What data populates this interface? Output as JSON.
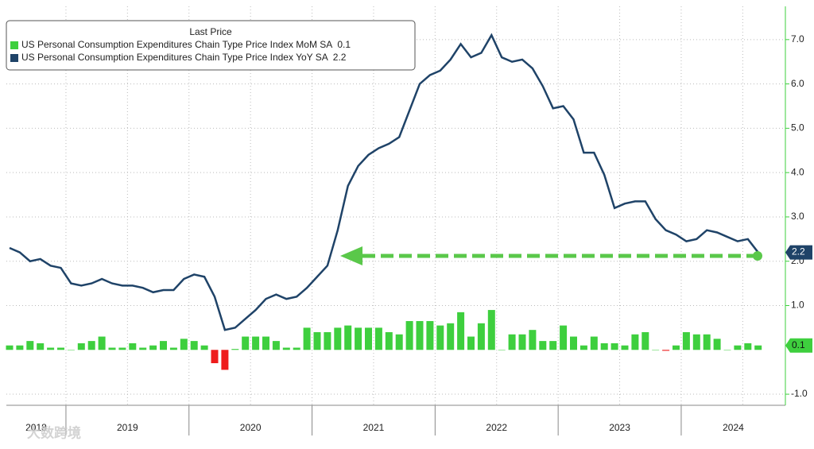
{
  "chart_data": {
    "type": "bar_line",
    "legend_title": "Last Price",
    "series": [
      {
        "name": "US Personal Consumption Expenditures Chain Type Price Index MoM SA",
        "type": "bar",
        "color": "#3ecf3e",
        "negative_color": "#ee1c1c",
        "values": [
          0.1,
          0.1,
          0.2,
          0.15,
          0.05,
          0.05,
          0.0,
          0.15,
          0.2,
          0.3,
          0.05,
          0.05,
          0.15,
          0.05,
          0.1,
          0.2,
          0.05,
          0.25,
          0.2,
          0.1,
          -0.3,
          -0.45,
          0.02,
          0.3,
          0.3,
          0.3,
          0.2,
          0.05,
          0.05,
          0.5,
          0.4,
          0.4,
          0.5,
          0.55,
          0.5,
          0.5,
          0.5,
          0.4,
          0.35,
          0.65,
          0.65,
          0.65,
          0.55,
          0.6,
          0.85,
          0.3,
          0.6,
          0.9,
          0.0,
          0.35,
          0.35,
          0.45,
          0.2,
          0.2,
          0.55,
          0.3,
          0.1,
          0.3,
          0.15,
          0.15,
          0.1,
          0.35,
          0.4,
          0.0,
          -0.02,
          0.1,
          0.4,
          0.35,
          0.35,
          0.25,
          0.0,
          0.1,
          0.15,
          0.1
        ]
      },
      {
        "name": "US Personal Consumption Expenditures Chain Type Price Index YoY SA",
        "type": "line",
        "color": "#1f4368",
        "values": [
          2.3,
          2.2,
          2.0,
          2.05,
          1.9,
          1.85,
          1.5,
          1.45,
          1.5,
          1.6,
          1.5,
          1.45,
          1.45,
          1.4,
          1.3,
          1.35,
          1.35,
          1.6,
          1.7,
          1.65,
          1.2,
          0.45,
          0.5,
          0.7,
          0.9,
          1.15,
          1.25,
          1.15,
          1.2,
          1.4,
          1.65,
          1.9,
          2.7,
          3.7,
          4.15,
          4.4,
          4.55,
          4.65,
          4.8,
          5.4,
          6.0,
          6.2,
          6.3,
          6.55,
          6.9,
          6.6,
          6.7,
          7.1,
          6.6,
          6.5,
          6.55,
          6.35,
          5.95,
          5.45,
          5.5,
          5.2,
          4.45,
          4.45,
          3.95,
          3.2,
          3.3,
          3.35,
          3.35,
          2.95,
          2.7,
          2.6,
          2.45,
          2.5,
          2.7,
          2.65,
          2.55,
          2.45,
          2.5,
          2.2
        ]
      }
    ],
    "years": [
      "2018",
      "2019",
      "2020",
      "2021",
      "2022",
      "2023",
      "2024"
    ],
    "ylim": [
      -1.25,
      7.75
    ],
    "yticks": [
      {
        "value": -1,
        "label": "-1.0"
      },
      {
        "value": 1,
        "label": "1.0"
      },
      {
        "value": 2,
        "label": "2.0"
      },
      {
        "value": 3,
        "label": "3.0"
      },
      {
        "value": 4,
        "label": "4.0"
      },
      {
        "value": 5,
        "label": "5.0"
      },
      {
        "value": 6,
        "label": "6.0"
      },
      {
        "value": 7,
        "label": "7.0"
      }
    ],
    "grid": true,
    "watermark": "大数跨境"
  }
}
